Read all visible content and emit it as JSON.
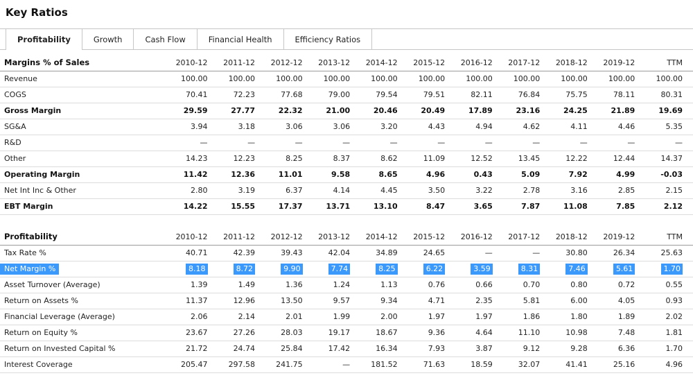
{
  "page_title": "Key Ratios",
  "tabs": [
    {
      "label": "Profitability",
      "active": true
    },
    {
      "label": "Growth",
      "active": false
    },
    {
      "label": "Cash Flow",
      "active": false
    },
    {
      "label": "Financial Health",
      "active": false
    },
    {
      "label": "Efficiency Ratios",
      "active": false
    }
  ],
  "columns": [
    "2010-12",
    "2011-12",
    "2012-12",
    "2013-12",
    "2014-12",
    "2015-12",
    "2016-12",
    "2017-12",
    "2018-12",
    "2019-12",
    "TTM"
  ],
  "colors": {
    "selection_highlight": "#3b99fb",
    "row_border": "#dcdcdc",
    "header_border": "#9a9a9a",
    "tab_border": "#c6c6c6"
  },
  "tables": [
    {
      "title": "Margins % of Sales",
      "rows": [
        {
          "label": "Revenue",
          "bold": false,
          "highlight": false,
          "values": [
            "100.00",
            "100.00",
            "100.00",
            "100.00",
            "100.00",
            "100.00",
            "100.00",
            "100.00",
            "100.00",
            "100.00",
            "100.00"
          ]
        },
        {
          "label": "COGS",
          "bold": false,
          "highlight": false,
          "values": [
            "70.41",
            "72.23",
            "77.68",
            "79.00",
            "79.54",
            "79.51",
            "82.11",
            "76.84",
            "75.75",
            "78.11",
            "80.31"
          ]
        },
        {
          "label": "Gross Margin",
          "bold": true,
          "highlight": false,
          "values": [
            "29.59",
            "27.77",
            "22.32",
            "21.00",
            "20.46",
            "20.49",
            "17.89",
            "23.16",
            "24.25",
            "21.89",
            "19.69"
          ]
        },
        {
          "label": "SG&A",
          "bold": false,
          "highlight": false,
          "values": [
            "3.94",
            "3.18",
            "3.06",
            "3.06",
            "3.20",
            "4.43",
            "4.94",
            "4.62",
            "4.11",
            "4.46",
            "5.35"
          ]
        },
        {
          "label": "R&D",
          "bold": false,
          "highlight": false,
          "values": [
            "—",
            "—",
            "—",
            "—",
            "—",
            "—",
            "—",
            "—",
            "—",
            "—",
            "—"
          ]
        },
        {
          "label": "Other",
          "bold": false,
          "highlight": false,
          "values": [
            "14.23",
            "12.23",
            "8.25",
            "8.37",
            "8.62",
            "11.09",
            "12.52",
            "13.45",
            "12.22",
            "12.44",
            "14.37"
          ]
        },
        {
          "label": "Operating Margin",
          "bold": true,
          "highlight": false,
          "values": [
            "11.42",
            "12.36",
            "11.01",
            "9.58",
            "8.65",
            "4.96",
            "0.43",
            "5.09",
            "7.92",
            "4.99",
            "-0.03"
          ]
        },
        {
          "label": "Net Int Inc & Other",
          "bold": false,
          "highlight": false,
          "values": [
            "2.80",
            "3.19",
            "6.37",
            "4.14",
            "4.45",
            "3.50",
            "3.22",
            "2.78",
            "3.16",
            "2.85",
            "2.15"
          ]
        },
        {
          "label": "EBT Margin",
          "bold": true,
          "highlight": false,
          "values": [
            "14.22",
            "15.55",
            "17.37",
            "13.71",
            "13.10",
            "8.47",
            "3.65",
            "7.87",
            "11.08",
            "7.85",
            "2.12"
          ]
        }
      ]
    },
    {
      "title": "Profitability",
      "rows": [
        {
          "label": "Tax Rate %",
          "bold": false,
          "highlight": false,
          "values": [
            "40.71",
            "42.39",
            "39.43",
            "42.04",
            "34.89",
            "24.65",
            "—",
            "—",
            "30.80",
            "26.34",
            "25.63"
          ]
        },
        {
          "label": "Net Margin %",
          "bold": false,
          "highlight": true,
          "values": [
            "8.18",
            "8.72",
            "9.90",
            "7.74",
            "8.25",
            "6.22",
            "3.59",
            "8.31",
            "7.46",
            "5.61",
            "1.70"
          ]
        },
        {
          "label": "Asset Turnover (Average)",
          "bold": false,
          "highlight": false,
          "values": [
            "1.39",
            "1.49",
            "1.36",
            "1.24",
            "1.13",
            "0.76",
            "0.66",
            "0.70",
            "0.80",
            "0.72",
            "0.55"
          ]
        },
        {
          "label": "Return on Assets %",
          "bold": false,
          "highlight": false,
          "values": [
            "11.37",
            "12.96",
            "13.50",
            "9.57",
            "9.34",
            "4.71",
            "2.35",
            "5.81",
            "6.00",
            "4.05",
            "0.93"
          ]
        },
        {
          "label": "Financial Leverage (Average)",
          "bold": false,
          "highlight": false,
          "values": [
            "2.06",
            "2.14",
            "2.01",
            "1.99",
            "2.00",
            "1.97",
            "1.97",
            "1.86",
            "1.80",
            "1.89",
            "2.02"
          ]
        },
        {
          "label": "Return on Equity %",
          "bold": false,
          "highlight": false,
          "values": [
            "23.67",
            "27.26",
            "28.03",
            "19.17",
            "18.67",
            "9.36",
            "4.64",
            "11.10",
            "10.98",
            "7.48",
            "1.81"
          ]
        },
        {
          "label": "Return on Invested Capital %",
          "bold": false,
          "highlight": false,
          "values": [
            "21.72",
            "24.74",
            "25.84",
            "17.42",
            "16.34",
            "7.93",
            "3.87",
            "9.12",
            "9.28",
            "6.36",
            "1.70"
          ]
        },
        {
          "label": "Interest Coverage",
          "bold": false,
          "highlight": false,
          "values": [
            "205.47",
            "297.58",
            "241.75",
            "—",
            "181.52",
            "71.63",
            "18.59",
            "32.07",
            "41.41",
            "25.16",
            "4.96"
          ]
        }
      ]
    }
  ]
}
